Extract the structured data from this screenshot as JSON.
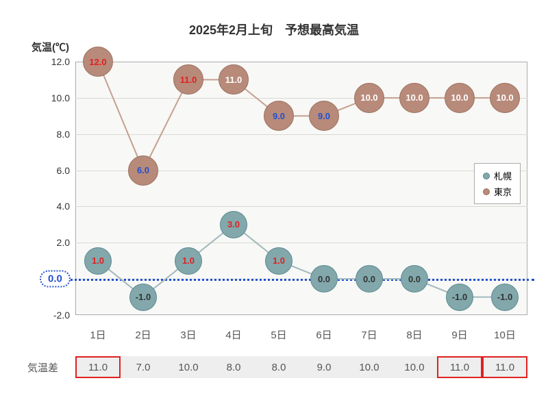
{
  "chart": {
    "title": "2025年2月上旬　予想最高気温",
    "y_axis_label": "気温(℃)",
    "type": "line-marker",
    "background_color": "#f8f8f6",
    "gridline_color": "#d8d8d4",
    "border_color": "#aaaaaa",
    "zero_line_color": "#2050d0",
    "y_axis": {
      "min": -2.0,
      "max": 12.0,
      "tick_step": 2.0,
      "ticks": [
        -2.0,
        0.0,
        2.0,
        4.0,
        6.0,
        8.0,
        10.0,
        12.0
      ],
      "tick_labels": [
        "-2.0",
        "0.0",
        "2.0",
        "4.0",
        "6.0",
        "8.0",
        "10.0",
        "12.0"
      ],
      "zero_label": "0.0"
    },
    "x_axis": {
      "categories": [
        "1日",
        "2日",
        "3日",
        "4日",
        "5日",
        "6日",
        "7日",
        "8日",
        "9日",
        "10日"
      ]
    },
    "series": [
      {
        "name": "札幌",
        "color": "#82a8ac",
        "line_color": "#a0b8bc",
        "marker_border": "#5a8a90",
        "values": [
          1.0,
          -1.0,
          1.0,
          3.0,
          1.0,
          0.0,
          0.0,
          0.0,
          -1.0,
          -1.0
        ],
        "labels": [
          "1.0",
          "-1.0",
          "1.0",
          "3.0",
          "1.0",
          "0.0",
          "0.0",
          "0.0",
          "-1.0",
          "-1.0"
        ],
        "label_colors": [
          "#e02020",
          "#333333",
          "#e02020",
          "#e02020",
          "#e02020",
          "#333333",
          "#333333",
          "#333333",
          "#333333",
          "#333333"
        ],
        "marker_size": 40
      },
      {
        "name": "東京",
        "color": "#b88a7a",
        "line_color": "#c4a090",
        "marker_border": "#9a7060",
        "values": [
          12.0,
          6.0,
          11.0,
          11.0,
          9.0,
          9.0,
          10.0,
          10.0,
          10.0,
          10.0
        ],
        "labels": [
          "12.0",
          "6.0",
          "11.0",
          "11.0",
          "9.0",
          "9.0",
          "10.0",
          "10.0",
          "10.0",
          "10.0"
        ],
        "label_colors": [
          "#e02020",
          "#2050d0",
          "#e02020",
          "#ffffff",
          "#2050d0",
          "#2050d0",
          "#ffffff",
          "#ffffff",
          "#ffffff",
          "#ffffff"
        ],
        "marker_size": 44
      }
    ],
    "diff_table": {
      "label": "気温差",
      "values": [
        "11.0",
        "7.0",
        "10.0",
        "8.0",
        "8.0",
        "9.0",
        "10.0",
        "10.0",
        "11.0",
        "11.0"
      ],
      "highlight": [
        true,
        false,
        false,
        false,
        false,
        false,
        false,
        false,
        true,
        true
      ],
      "cell_bg": "#eeeeee",
      "highlight_border": "#e02020"
    },
    "legend": {
      "position": "right-middle",
      "items": [
        "札幌",
        "東京"
      ]
    }
  }
}
